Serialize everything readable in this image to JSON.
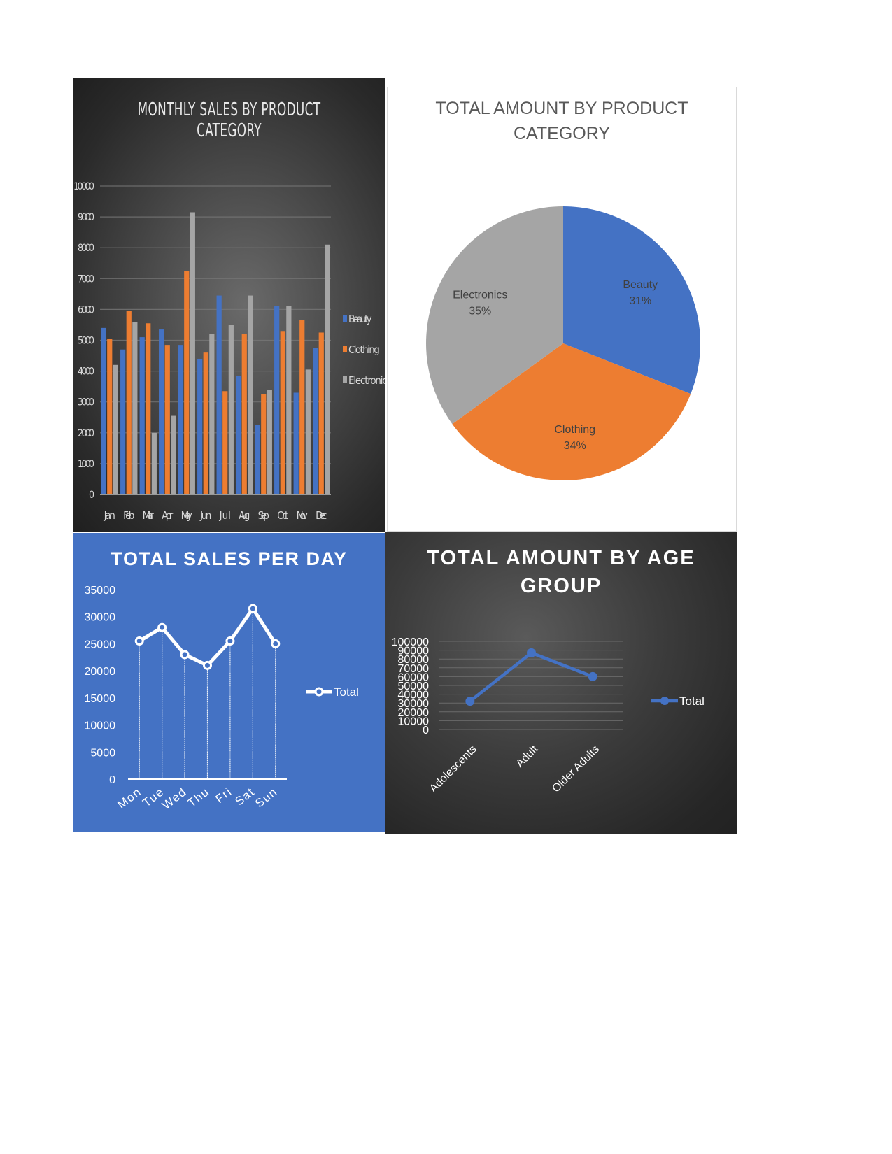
{
  "chart_data": [
    {
      "id": "monthly",
      "type": "bar",
      "title": "MONTHLY SALES BY PRODUCT CATEGORY",
      "categories": [
        "Jan",
        "Feb",
        "Mar",
        "Apr",
        "May",
        "Jun",
        "Jul",
        "Aug",
        "Sep",
        "Oct",
        "Nov",
        "Dec"
      ],
      "series": [
        {
          "name": "Beauty",
          "color": "#4472c4",
          "values": [
            5400,
            4700,
            5100,
            5350,
            4850,
            4400,
            6450,
            3850,
            2250,
            6100,
            3300,
            4750
          ]
        },
        {
          "name": "Clothing",
          "color": "#ed7d31",
          "values": [
            5050,
            5950,
            5550,
            4850,
            7250,
            4600,
            3350,
            5200,
            3250,
            5300,
            5650,
            5250
          ]
        },
        {
          "name": "Electronics",
          "color": "#a5a5a5",
          "values": [
            4200,
            5600,
            2000,
            2550,
            9150,
            5200,
            5500,
            6450,
            3400,
            6100,
            4050,
            8100
          ]
        }
      ],
      "ylim": [
        0,
        10000
      ],
      "yticks": [
        0,
        1000,
        2000,
        3000,
        4000,
        5000,
        6000,
        7000,
        8000,
        9000,
        10000
      ],
      "grid": true,
      "legend": "right"
    },
    {
      "id": "pie",
      "type": "pie",
      "title": "TOTAL AMOUNT BY PRODUCT CATEGORY",
      "slices": [
        {
          "name": "Beauty",
          "percent_label": "31%",
          "value": 31,
          "color": "#4472c4"
        },
        {
          "name": "Clothing",
          "percent_label": "34%",
          "value": 34,
          "color": "#ed7d31"
        },
        {
          "name": "Electronics",
          "percent_label": "35%",
          "value": 35,
          "color": "#a5a5a5"
        }
      ]
    },
    {
      "id": "daily",
      "type": "line",
      "title": "TOTAL SALES PER DAY",
      "categories": [
        "Mon",
        "Tue",
        "Wed",
        "Thu",
        "Fri",
        "Sat",
        "Sun"
      ],
      "series": [
        {
          "name": "Total",
          "color": "#ffffff",
          "values": [
            25500,
            28000,
            23000,
            21000,
            25500,
            31500,
            25000
          ]
        }
      ],
      "ylim": [
        0,
        35000
      ],
      "yticks": [
        0,
        5000,
        10000,
        15000,
        20000,
        25000,
        30000,
        35000
      ],
      "grid": false,
      "legend": "right"
    },
    {
      "id": "age",
      "type": "line",
      "title": "TOTAL AMOUNT BY AGE GROUP",
      "categories": [
        "Adolescents",
        "Adult",
        "Older Adults"
      ],
      "series": [
        {
          "name": "Total",
          "color": "#4472c4",
          "values": [
            32000,
            87000,
            60000
          ]
        }
      ],
      "ylim": [
        0,
        100000
      ],
      "yticks": [
        0,
        10000,
        20000,
        30000,
        40000,
        50000,
        60000,
        70000,
        80000,
        90000,
        100000
      ],
      "grid": true,
      "legend": "right"
    }
  ]
}
